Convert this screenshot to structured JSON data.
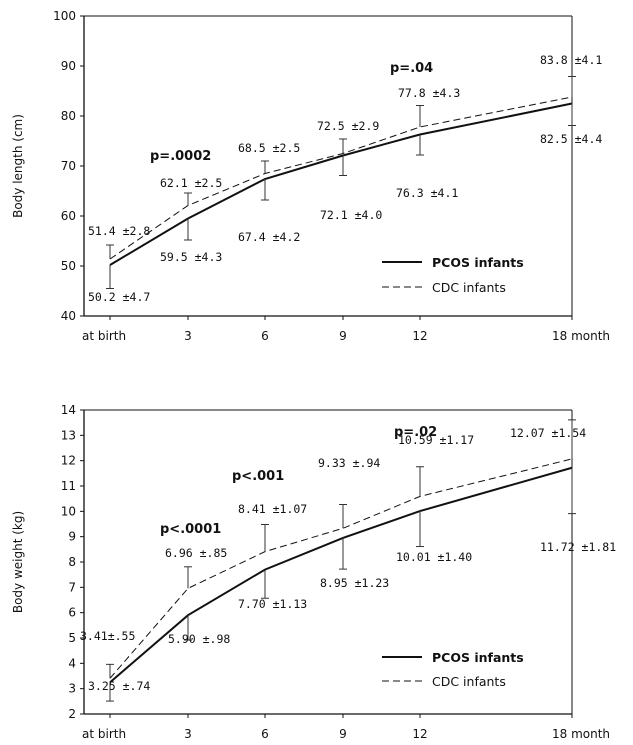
{
  "chart_data": [
    {
      "type": "line",
      "ylabel": "Body length (cm)",
      "ylim": [
        40,
        100
      ],
      "yticks": [
        "40",
        "50",
        "60",
        "70",
        "80",
        "90",
        "100"
      ],
      "x": [
        0,
        3,
        6,
        9,
        12,
        18
      ],
      "categories": [
        "at birth",
        "3",
        "6",
        "9",
        "12",
        "18 month"
      ],
      "series": [
        {
          "name": "PCOS infants",
          "style": "solid",
          "values": [
            50.2,
            59.5,
            67.4,
            72.1,
            76.3,
            82.5
          ],
          "errors": [
            4.7,
            4.3,
            4.2,
            4.0,
            4.1,
            4.4
          ],
          "labels": [
            "50.2 ±4.7",
            "59.5 ±4.3",
            "67.4 ±4.2",
            "72.1 ±4.0",
            "76.3 ±4.1",
            "82.5 ±4.4"
          ]
        },
        {
          "name": "CDC infants",
          "style": "dashed",
          "values": [
            51.4,
            62.1,
            68.5,
            72.5,
            77.8,
            83.8
          ],
          "errors": [
            2.8,
            2.5,
            2.5,
            2.9,
            4.3,
            4.1
          ],
          "labels": [
            "51.4 ±2.8",
            "62.1 ±2.5",
            "68.5 ±2.5",
            "72.5 ±2.9",
            "77.8 ±4.3",
            "83.8 ±4.1"
          ]
        }
      ],
      "annotations": [
        {
          "text": "p=.0002",
          "x": 3
        },
        {
          "text": "p=.04",
          "x": 12
        }
      ],
      "legend": "bottom-right",
      "grid": false
    },
    {
      "type": "line",
      "ylabel": "Body weight (kg)",
      "ylim": [
        2,
        14
      ],
      "yticks": [
        "2",
        "3",
        "4",
        "5",
        "6",
        "7",
        "8",
        "9",
        "10",
        "11",
        "12",
        "13",
        "14"
      ],
      "x": [
        0,
        3,
        6,
        9,
        12,
        18
      ],
      "categories": [
        "at birth",
        "3",
        "6",
        "9",
        "12",
        "18 month"
      ],
      "series": [
        {
          "name": "PCOS infants",
          "style": "solid",
          "values": [
            3.25,
            5.9,
            7.7,
            8.95,
            10.01,
            11.72
          ],
          "errors": [
            0.74,
            0.98,
            1.13,
            1.23,
            1.4,
            1.81
          ],
          "labels": [
            "3.25 ±.74",
            "5.90 ±.98",
            "7.70 ±1.13",
            "8.95 ±1.23",
            "10.01 ±1.40",
            "11.72 ±1.81"
          ]
        },
        {
          "name": "CDC infants",
          "style": "dashed",
          "values": [
            3.41,
            6.96,
            8.41,
            9.33,
            10.59,
            12.07
          ],
          "errors": [
            0.55,
            0.85,
            1.07,
            0.94,
            1.17,
            1.54
          ],
          "labels": [
            "3.41±.55",
            "6.96 ±.85",
            "8.41 ±1.07",
            "9.33 ±.94",
            "10.59 ±1.17",
            "12.07 ±1.54"
          ]
        }
      ],
      "annotations": [
        {
          "text": "p<.0001",
          "x": 3
        },
        {
          "text": "p<.001",
          "x": 6
        },
        {
          "text": "p=.02",
          "x": 12
        }
      ],
      "legend": "bottom-right",
      "grid": false
    }
  ]
}
